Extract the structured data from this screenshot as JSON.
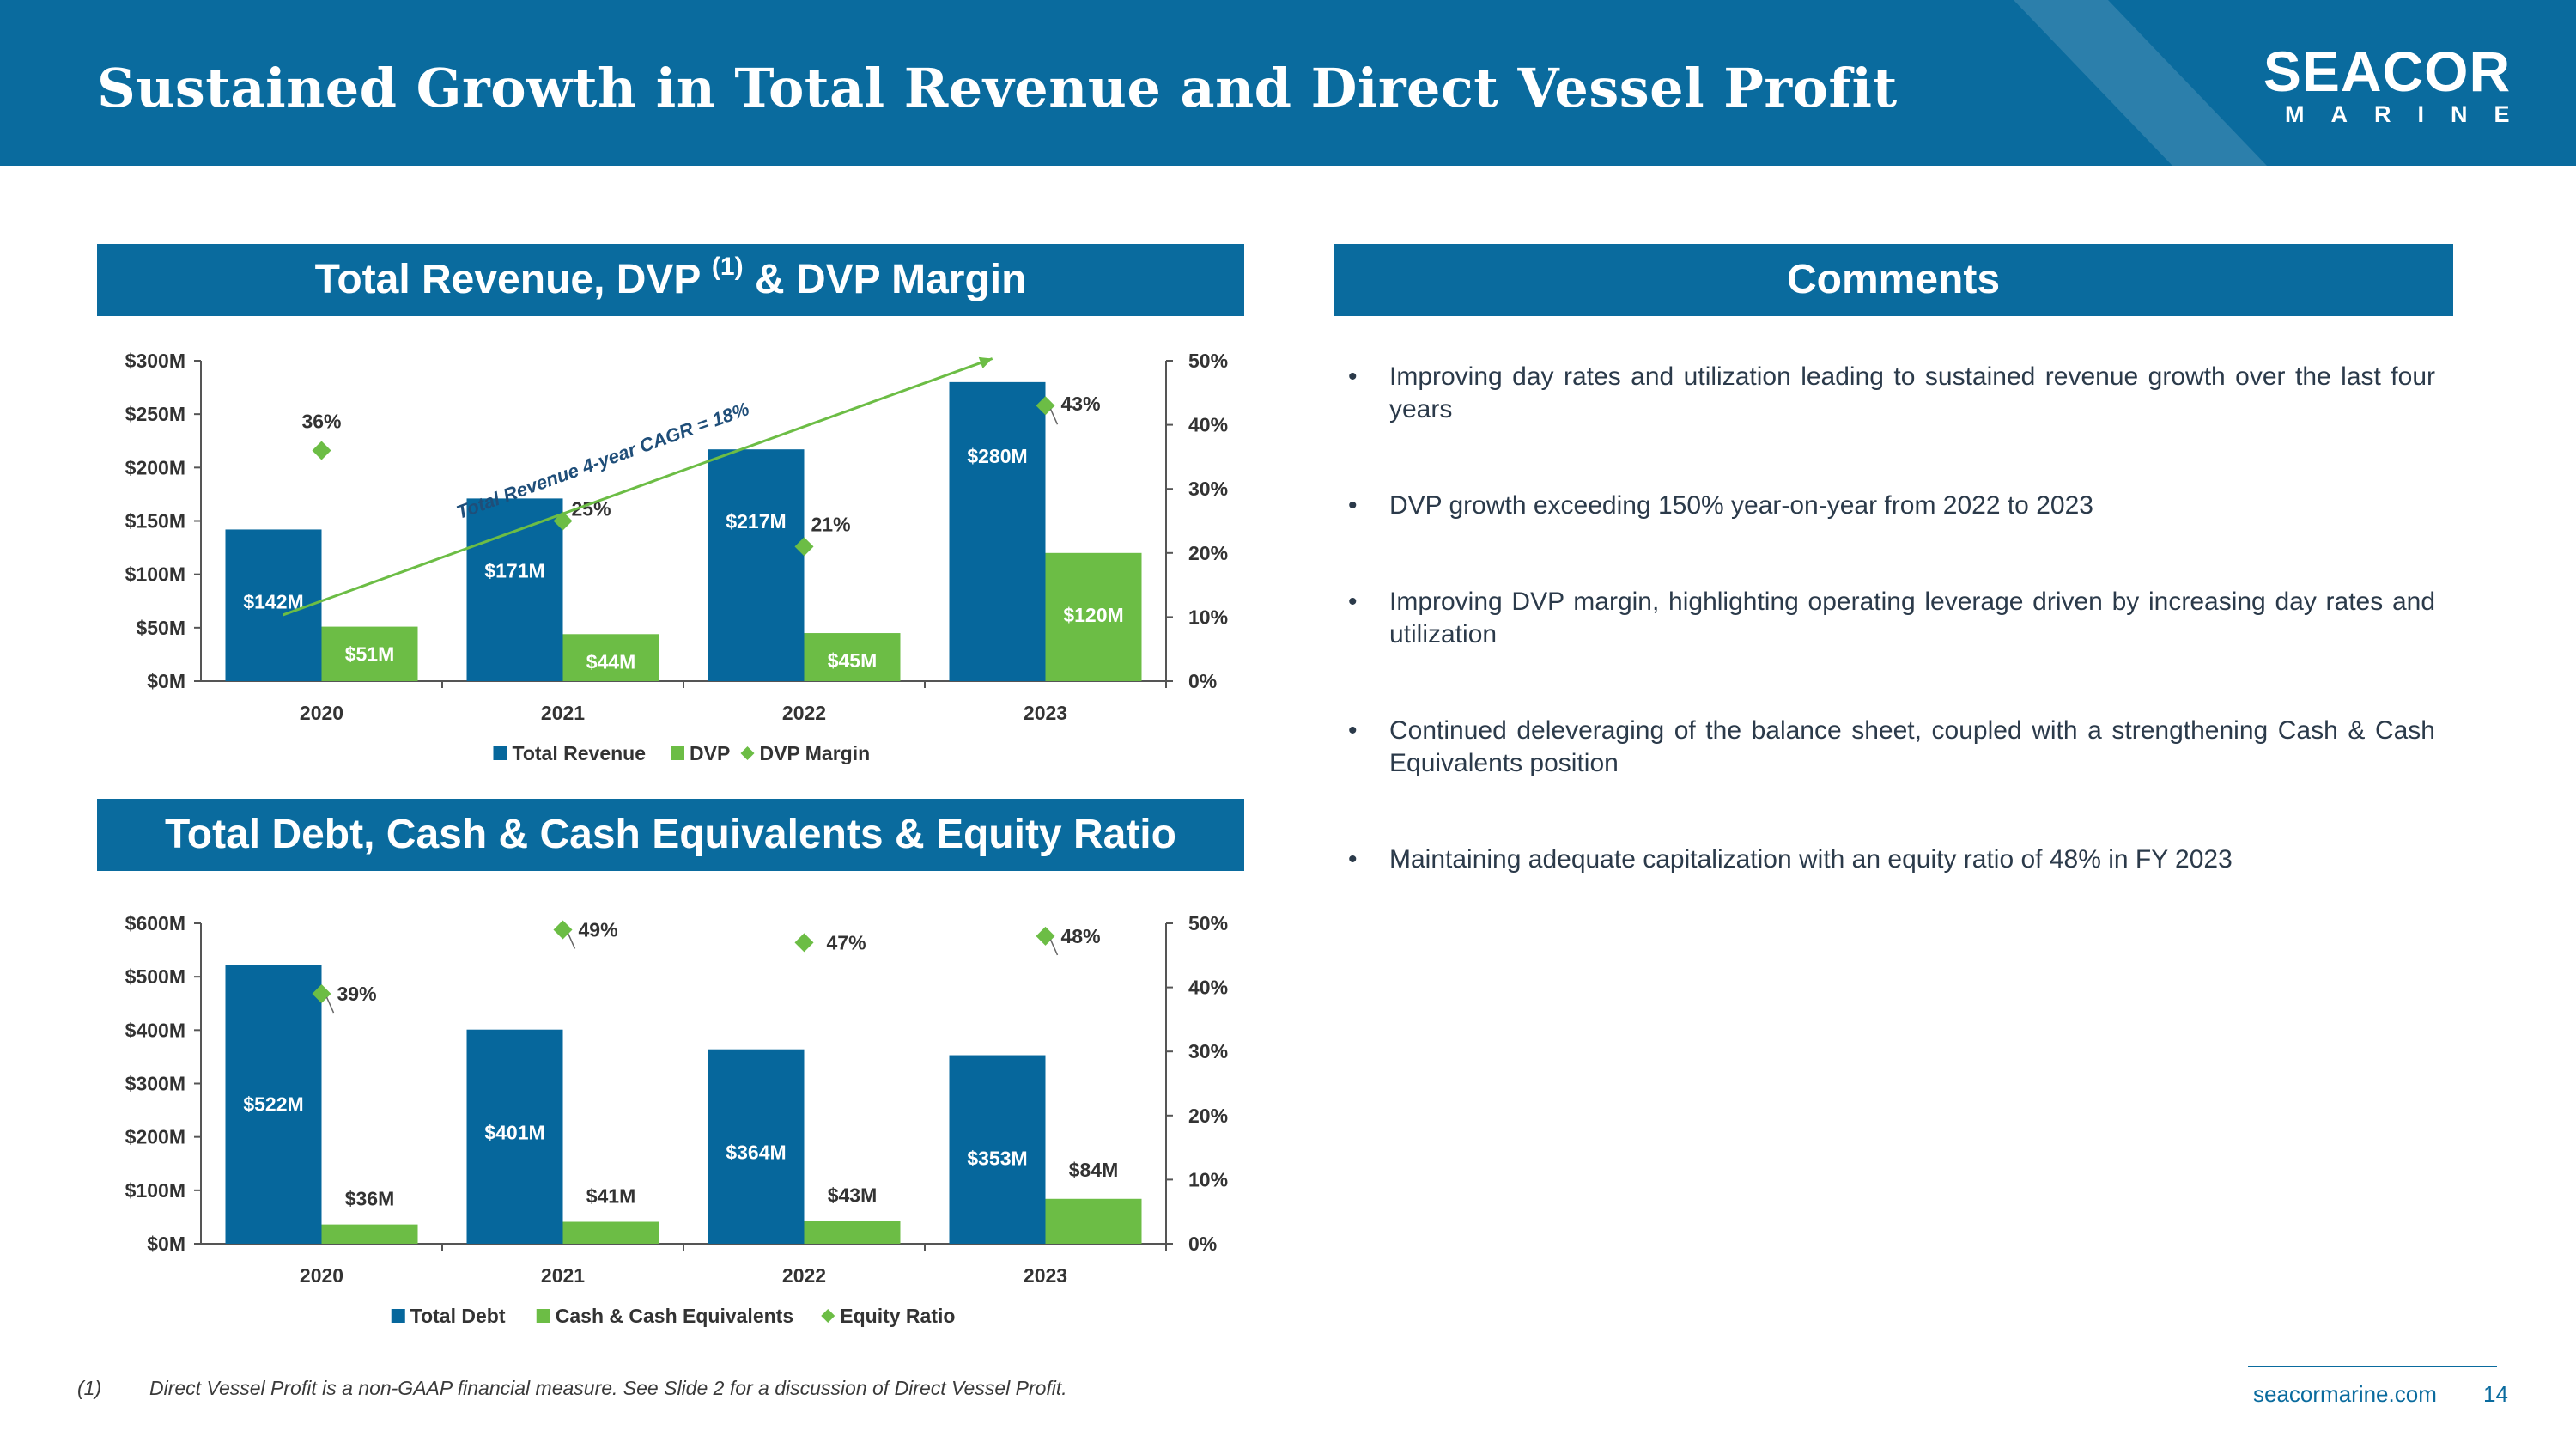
{
  "slide": {
    "title": "Sustained Growth in Total Revenue and Direct Vessel Profit",
    "page_number": "14",
    "website": "seacormarine.com",
    "footnote_marker": "(1)",
    "footnote": "Direct Vessel Profit is a non-GAAP financial measure. See Slide 2 for a discussion of Direct Vessel Profit."
  },
  "logo": {
    "word": "SEACOR",
    "sub": "MARINE"
  },
  "colors": {
    "header": "#0a6b9e",
    "bar_primary": "#06679c",
    "bar_secondary": "#6cbd45",
    "marker": "#6cbd45",
    "axis": "#555555"
  },
  "revenue_section": {
    "banner_main": "Total Revenue, DVP",
    "banner_sup": "(1)",
    "banner_tail": "& DVP Margin"
  },
  "debt_section": {
    "banner": "Total Debt, Cash & Cash Equivalents & Equity Ratio"
  },
  "comments_section": {
    "banner": "Comments",
    "bullet": "•",
    "items": [
      "Improving day rates and utilization leading to sustained revenue growth over the last four years",
      "DVP growth exceeding 150% year-on-year from 2022 to 2023",
      "Improving DVP margin, highlighting operating leverage driven by increasing day rates and utilization",
      "Continued deleveraging of the balance sheet, coupled with a strengthening Cash & Cash Equivalents position",
      "Maintaining adequate capitalization with an equity ratio of 48% in FY 2023"
    ]
  },
  "chart_data": [
    {
      "type": "bar",
      "id": "revenue",
      "categories": [
        "2020",
        "2021",
        "2022",
        "2023"
      ],
      "series": [
        {
          "name": "Total Revenue",
          "values": [
            142,
            171,
            217,
            280
          ],
          "labels": [
            "$142M",
            "$171M",
            "$217M",
            "$280M"
          ],
          "color": "#06679c"
        },
        {
          "name": "DVP",
          "values": [
            51,
            44,
            45,
            120
          ],
          "labels": [
            "$51M",
            "$44M",
            "$45M",
            "$120M"
          ],
          "color": "#6cbd45"
        }
      ],
      "line_series": {
        "name": "DVP Margin",
        "values": [
          36,
          25,
          21,
          43
        ],
        "labels": [
          "36%",
          "25%",
          "21%",
          "43%"
        ],
        "axis": "right",
        "color": "#6cbd45"
      },
      "ylim": [
        0,
        300
      ],
      "yticks": [
        "$0M",
        "$50M",
        "$100M",
        "$150M",
        "$200M",
        "$250M",
        "$300M"
      ],
      "y2lim": [
        0,
        50
      ],
      "y2ticks": [
        "0%",
        "10%",
        "20%",
        "30%",
        "40%",
        "50%"
      ],
      "annotation": {
        "text": "Total Revenue 4-year CAGR = 18%",
        "from_value": 62,
        "to_value": 302
      },
      "legend": [
        "Total Revenue",
        "DVP",
        "DVP Margin"
      ],
      "legend_position": "bottom"
    },
    {
      "type": "bar",
      "id": "debt",
      "categories": [
        "2020",
        "2021",
        "2022",
        "2023"
      ],
      "series": [
        {
          "name": "Total Debt",
          "values": [
            522,
            401,
            364,
            353
          ],
          "labels": [
            "$522M",
            "$401M",
            "$364M",
            "$353M"
          ],
          "color": "#06679c"
        },
        {
          "name": "Cash & Cash Equivalents",
          "values": [
            36,
            41,
            43,
            84
          ],
          "labels": [
            "$36M",
            "$41M",
            "$43M",
            "$84M"
          ],
          "color": "#6cbd45"
        }
      ],
      "line_series": {
        "name": "Equity Ratio",
        "values": [
          39,
          49,
          47,
          48
        ],
        "labels": [
          "39%",
          "49%",
          "47%",
          "48%"
        ],
        "axis": "right",
        "color": "#6cbd45"
      },
      "ylim": [
        0,
        600
      ],
      "yticks": [
        "$0M",
        "$100M",
        "$200M",
        "$300M",
        "$400M",
        "$500M",
        "$600M"
      ],
      "y2lim": [
        0,
        50
      ],
      "y2ticks": [
        "0%",
        "10%",
        "20%",
        "30%",
        "40%",
        "50%"
      ],
      "legend": [
        "Total Debt",
        "Cash & Cash Equivalents",
        "Equity Ratio"
      ],
      "legend_position": "bottom"
    }
  ]
}
